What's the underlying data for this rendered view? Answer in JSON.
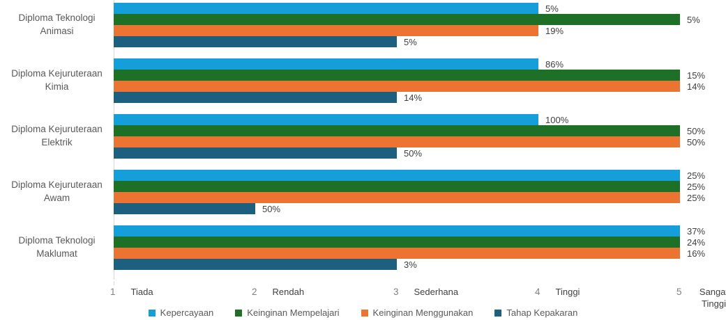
{
  "chart_data": {
    "type": "bar",
    "orientation": "horizontal",
    "title": "",
    "categories": [
      "Diploma Teknologi Animasi",
      "Diploma Kejuruteraan Kimia",
      "Diploma Kejuruteraan Elektrik",
      "Diploma Kejuruteraan Awam",
      "Diploma Teknologi Maklumat"
    ],
    "series": [
      {
        "name": "Kepercayaan",
        "color": "#149fda",
        "values": [
          4,
          4,
          4,
          5,
          5
        ],
        "labels": [
          "5%",
          "86%",
          "100%",
          "25%",
          "37%"
        ]
      },
      {
        "name": "Keinginan Mempelajari",
        "color": "#1e7026",
        "values": [
          5,
          5,
          5,
          5,
          5
        ],
        "labels": [
          "5%",
          "15%",
          "50%",
          "25%",
          "24%"
        ]
      },
      {
        "name": "Keinginan Menggunakan",
        "color": "#eb7433",
        "values": [
          4,
          5,
          5,
          5,
          5
        ],
        "labels": [
          "19%",
          "14%",
          "50%",
          "25%",
          "16%"
        ]
      },
      {
        "name": "Tahap Kepakaran",
        "color": "#1c5f7f",
        "values": [
          3,
          3,
          3,
          2,
          3
        ],
        "labels": [
          "5%",
          "14%",
          "50%",
          "50%",
          "3%"
        ]
      }
    ],
    "x_axis": {
      "min": 1,
      "max": 5,
      "ticks": [
        {
          "num": "1",
          "word": "Tiada"
        },
        {
          "num": "2",
          "word": "Rendah"
        },
        {
          "num": "3",
          "word": "Sederhana"
        },
        {
          "num": "4",
          "word": "Tinggi"
        },
        {
          "num": "5",
          "word": "Sangat Tinggi"
        }
      ]
    },
    "legend_position": "bottom",
    "grid": false,
    "axis_line_color": "#d9d9d9"
  }
}
